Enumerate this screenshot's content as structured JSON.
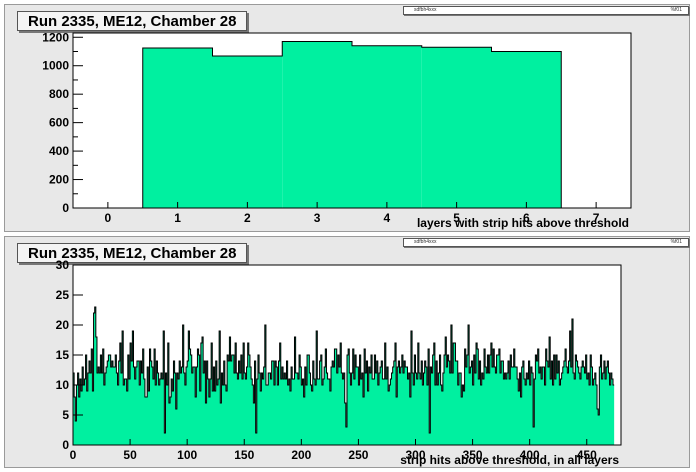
{
  "charts": [
    {
      "title": "Run 2335, ME12, Chamber 28",
      "stats": {
        "name": "sdfbh4xxx",
        "value": "%f01"
      }
    },
    {
      "title": "Run 2335, ME12, Chamber 28",
      "stats": {
        "name": "sdfbh4xxx",
        "value": "%f01"
      }
    }
  ],
  "colors": {
    "fill": "#00f0a0",
    "line": "#000000",
    "frame_bg": "#ffffff",
    "pad_bg": "#e8e8e8"
  },
  "chart_data": [
    {
      "type": "bar",
      "title": "Run 2335, ME12, Chamber 28",
      "xlabel": "layers with strip hits above threshold",
      "ylabel": "",
      "xlim": [
        -0.5,
        7.5
      ],
      "ylim": [
        0,
        1230
      ],
      "xticks": [
        0,
        1,
        2,
        3,
        4,
        5,
        6,
        7
      ],
      "yticks": [
        0,
        100,
        200,
        300,
        400,
        500,
        600,
        700,
        800,
        900,
        1000,
        1100,
        1200
      ],
      "yticklabels": [
        0,
        200,
        400,
        600,
        800,
        1000,
        1200
      ],
      "categories": [
        1,
        2,
        3,
        4,
        5,
        6
      ],
      "values": [
        1125,
        1068,
        1170,
        1140,
        1130,
        1100
      ]
    },
    {
      "type": "bar",
      "title": "Run 2335, ME12, Chamber 28",
      "xlabel": "strip hits above threshold, in all layers",
      "ylabel": "",
      "xlim": [
        0,
        480
      ],
      "ylim": [
        0,
        30
      ],
      "xticks": [
        0,
        50,
        100,
        150,
        200,
        250,
        300,
        350,
        400,
        450
      ],
      "yticks": [
        0,
        5,
        10,
        15,
        20,
        25,
        30
      ],
      "bin_width": 1,
      "values": [
        12,
        8,
        4,
        10,
        12,
        8,
        11,
        9,
        13,
        10,
        11,
        15,
        9,
        12,
        14,
        12,
        16,
        9,
        22,
        23,
        18,
        12,
        13,
        12,
        15,
        12,
        16,
        10,
        12,
        13,
        14,
        15,
        15,
        13,
        14,
        13,
        13,
        15,
        12,
        10,
        14,
        17,
        12,
        19,
        10,
        11,
        11,
        9,
        15,
        11,
        17,
        14,
        19,
        13,
        11,
        13,
        14,
        14,
        10,
        14,
        12,
        16,
        11,
        8,
        8,
        13,
        9,
        16,
        14,
        13,
        11,
        16,
        10,
        14,
        12,
        10,
        11,
        12,
        11,
        19,
        2,
        12,
        10,
        17,
        7,
        8,
        11,
        9,
        14,
        12,
        6,
        12,
        11,
        14,
        12,
        13,
        20,
        12,
        10,
        13,
        14,
        19,
        16,
        15,
        12,
        13,
        13,
        8,
        13,
        16,
        15,
        9,
        17,
        18,
        12,
        14,
        7,
        14,
        11,
        8,
        11,
        17,
        9,
        13,
        9,
        14,
        10,
        11,
        19,
        7,
        12,
        10,
        14,
        10,
        9,
        15,
        14,
        18,
        14,
        15,
        15,
        12,
        17,
        12,
        11,
        14,
        12,
        15,
        11,
        17,
        12,
        11,
        13,
        17,
        15,
        13,
        11,
        10,
        7,
        14,
        2,
        11,
        15,
        12,
        9,
        12,
        11,
        13,
        20,
        10,
        10,
        12,
        12,
        11,
        14,
        14,
        10,
        14,
        13,
        10,
        14,
        17,
        11,
        13,
        11,
        12,
        11,
        14,
        10,
        11,
        9,
        13,
        11,
        11,
        18,
        12,
        12,
        11,
        15,
        13,
        10,
        11,
        8,
        13,
        10,
        15,
        15,
        12,
        10,
        9,
        14,
        11,
        10,
        19,
        11,
        11,
        14,
        15,
        10,
        11,
        13,
        16,
        12,
        11,
        11,
        9,
        13,
        14,
        13,
        16,
        16,
        12,
        15,
        13,
        17,
        12,
        11,
        12,
        7,
        3,
        15,
        16,
        12,
        10,
        12,
        16,
        11,
        15,
        13,
        13,
        10,
        15,
        11,
        12,
        8,
        16,
        12,
        14,
        9,
        13,
        12,
        15,
        11,
        11,
        15,
        12,
        14,
        10,
        12,
        13,
        14,
        11,
        11,
        17,
        11,
        13,
        9,
        10,
        11,
        12,
        13,
        14,
        17,
        8,
        13,
        14,
        12,
        13,
        15,
        12,
        14,
        13,
        13,
        11,
        12,
        8,
        19,
        12,
        10,
        15,
        12,
        11,
        17,
        12,
        11,
        14,
        10,
        12,
        14,
        13,
        10,
        16,
        2,
        13,
        12,
        15,
        17,
        10,
        14,
        10,
        12,
        15,
        10,
        9,
        12,
        15,
        18,
        13,
        15,
        14,
        12,
        20,
        12,
        17,
        17,
        14,
        14,
        10,
        12,
        12,
        8,
        10,
        9,
        16,
        13,
        15,
        20,
        12,
        13,
        14,
        10,
        15,
        12,
        17,
        16,
        11,
        14,
        10,
        12,
        11,
        16,
        13,
        12,
        15,
        12,
        15,
        17,
        13,
        16,
        13,
        12,
        15,
        15,
        16,
        12,
        14,
        14,
        11,
        12,
        11,
        12,
        14,
        11,
        15,
        13,
        13,
        16,
        13,
        13,
        11,
        9,
        12,
        8,
        13,
        14,
        11,
        10,
        12,
        11,
        14,
        10,
        13,
        12,
        3,
        11,
        15,
        14,
        16,
        12,
        13,
        11,
        13,
        13,
        10,
        16,
        14,
        13,
        18,
        11,
        14,
        10,
        15,
        11,
        15,
        12,
        14,
        10,
        11,
        12,
        13,
        14,
        16,
        13,
        12,
        14,
        19,
        13,
        21,
        12,
        11,
        15,
        14,
        13,
        12,
        11,
        13,
        14,
        13,
        12,
        15,
        11,
        12,
        10,
        15,
        13,
        10,
        11,
        12,
        10,
        6,
        5,
        13,
        15,
        11,
        12,
        14,
        11,
        13,
        14,
        12,
        10,
        12,
        11,
        10
      ]
    }
  ]
}
